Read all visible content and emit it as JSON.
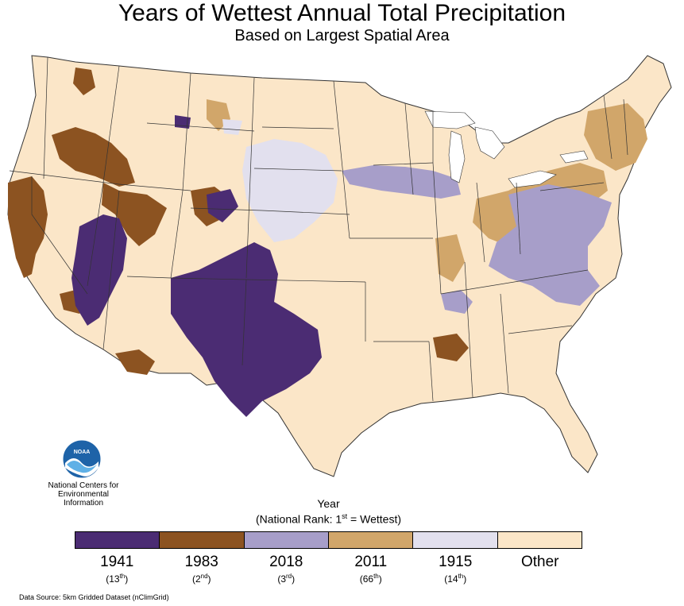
{
  "title": "Years of Wettest Annual Total Precipitation",
  "subtitle": "Based on Largest Spatial Area",
  "org": {
    "line1": "National Centers for",
    "line2": "Environmental",
    "line3": "Information",
    "logo_text": "NOAA"
  },
  "legend": {
    "title": "Year",
    "subtitle_prefix": "(National Rank: 1",
    "subtitle_sup": "st",
    "subtitle_suffix": " = Wettest)",
    "items": [
      {
        "year": "1941",
        "rank_num": "(13",
        "rank_sup": "th",
        "rank_close": ")",
        "color": "#4b2c73"
      },
      {
        "year": "1983",
        "rank_num": "(2",
        "rank_sup": "nd",
        "rank_close": ")",
        "color": "#8c5321"
      },
      {
        "year": "2018",
        "rank_num": "(3",
        "rank_sup": "rd",
        "rank_close": ")",
        "color": "#a79ec9"
      },
      {
        "year": "2011",
        "rank_num": "(66",
        "rank_sup": "th",
        "rank_close": ")",
        "color": "#d1a66a"
      },
      {
        "year": "1915",
        "rank_num": "(14",
        "rank_sup": "th",
        "rank_close": ")",
        "color": "#e2e0ee"
      },
      {
        "year": "Other",
        "rank_num": "",
        "rank_sup": "",
        "rank_close": "",
        "color": "#fbe6c8"
      }
    ]
  },
  "source": "Data Source: 5km Gridded Dataset (nClimGrid)"
}
